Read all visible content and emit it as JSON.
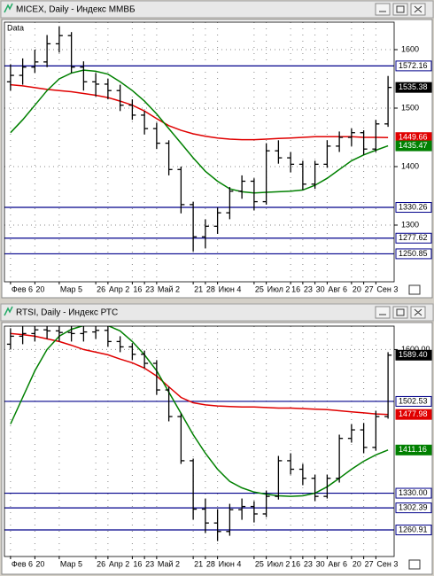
{
  "chart_data": [
    {
      "type": "ohlc",
      "title": "MICEX, Daily - Индекс ММВБ",
      "label": "Data",
      "categories": [
        "Фев 6",
        null,
        "20",
        null,
        "Мар 5",
        null,
        null,
        "26",
        "Апр 2",
        null,
        "16",
        "23",
        "Май 2",
        null,
        null,
        "21",
        "28",
        "Июн 4",
        null,
        null,
        "25",
        "Июл 2",
        null,
        "16",
        "23",
        "30",
        "Авг 6",
        null,
        "20",
        "27",
        "Сен 3",
        null
      ],
      "ohlc": [
        [
          1545,
          1575,
          1530,
          1556
        ],
        [
          1556,
          1585,
          1540,
          1570
        ],
        [
          1570,
          1600,
          1560,
          1579
        ],
        [
          1579,
          1625,
          1570,
          1610
        ],
        [
          1610,
          1640,
          1595,
          1624
        ],
        [
          1624,
          1630,
          1560,
          1570
        ],
        [
          1570,
          1580,
          1530,
          1545
        ],
        [
          1545,
          1560,
          1520,
          1541
        ],
        [
          1541,
          1550,
          1515,
          1530
        ],
        [
          1530,
          1540,
          1495,
          1505
        ],
        [
          1505,
          1515,
          1480,
          1488
        ],
        [
          1488,
          1495,
          1455,
          1465
        ],
        [
          1465,
          1475,
          1430,
          1440
        ],
        [
          1440,
          1445,
          1385,
          1395
        ],
        [
          1395,
          1400,
          1320,
          1335
        ],
        [
          1335,
          1340,
          1255,
          1280
        ],
        [
          1280,
          1310,
          1260,
          1298
        ],
        [
          1298,
          1330,
          1285,
          1321
        ],
        [
          1321,
          1365,
          1310,
          1358
        ],
        [
          1358,
          1385,
          1345,
          1375
        ],
        [
          1375,
          1380,
          1325,
          1340
        ],
        [
          1340,
          1440,
          1335,
          1427
        ],
        [
          1427,
          1445,
          1405,
          1415
        ],
        [
          1415,
          1425,
          1390,
          1404
        ],
        [
          1404,
          1410,
          1360,
          1370
        ],
        [
          1370,
          1410,
          1362,
          1404
        ],
        [
          1404,
          1445,
          1398,
          1435
        ],
        [
          1435,
          1460,
          1425,
          1450
        ],
        [
          1450,
          1465,
          1435,
          1458
        ],
        [
          1458,
          1462,
          1420,
          1430
        ],
        [
          1430,
          1480,
          1425,
          1473
        ],
        [
          1473,
          1555,
          1468,
          1535.38
        ]
      ],
      "series": [
        {
          "color": "#e00000",
          "values": [
            1540,
            1538,
            1535,
            1532,
            1530,
            1528,
            1525,
            1522,
            1518,
            1512,
            1505,
            1495,
            1482,
            1470,
            1462,
            1456,
            1452,
            1449,
            1447,
            1446,
            1446,
            1447,
            1448,
            1449,
            1450,
            1451,
            1451,
            1451,
            1451,
            1450,
            1450,
            1449.66
          ]
        },
        {
          "color": "#008000",
          "values": [
            1458,
            1480,
            1505,
            1530,
            1550,
            1560,
            1565,
            1563,
            1558,
            1545,
            1530,
            1512,
            1490,
            1465,
            1440,
            1415,
            1392,
            1375,
            1362,
            1357,
            1355,
            1356,
            1357,
            1358,
            1360,
            1368,
            1380,
            1395,
            1410,
            1420,
            1428,
            1435.47
          ]
        }
      ],
      "levels": [
        1572.16,
        1330.26,
        1277.62,
        1250.85
      ],
      "level_color": "#00008b",
      "ylim": [
        1203,
        1647
      ],
      "yticks": [
        1300,
        1400,
        1500,
        1600
      ],
      "grid": true
    },
    {
      "type": "ohlc",
      "title": "RTSI, Daily - Индекс РТС",
      "categories": [
        "Фев 6",
        null,
        "20",
        null,
        "Мар 5",
        null,
        null,
        "26",
        "Апр 2",
        null,
        "16",
        "23",
        "Май 2",
        null,
        null,
        "21",
        "28",
        "Июн 4",
        null,
        null,
        "25",
        "Июл 2",
        null,
        "16",
        "23",
        "30",
        "Авг 6",
        null,
        "20",
        "27",
        "Сен 3",
        null
      ],
      "ohlc": [
        [
          1610,
          1640,
          1600,
          1625
        ],
        [
          1625,
          1645,
          1610,
          1630
        ],
        [
          1630,
          1650,
          1615,
          1637
        ],
        [
          1637,
          1650,
          1620,
          1635
        ],
        [
          1635,
          1648,
          1615,
          1632
        ],
        [
          1632,
          1645,
          1615,
          1630
        ],
        [
          1630,
          1645,
          1615,
          1633
        ],
        [
          1633,
          1650,
          1620,
          1636
        ],
        [
          1636,
          1648,
          1605,
          1615
        ],
        [
          1615,
          1625,
          1595,
          1605
        ],
        [
          1605,
          1612,
          1580,
          1591
        ],
        [
          1591,
          1598,
          1565,
          1574
        ],
        [
          1574,
          1580,
          1515,
          1524
        ],
        [
          1524,
          1530,
          1465,
          1474
        ],
        [
          1474,
          1480,
          1385,
          1391
        ],
        [
          1391,
          1395,
          1280,
          1300
        ],
        [
          1300,
          1320,
          1255,
          1274
        ],
        [
          1274,
          1300,
          1240,
          1258
        ],
        [
          1258,
          1310,
          1250,
          1299
        ],
        [
          1299,
          1320,
          1280,
          1305
        ],
        [
          1305,
          1315,
          1275,
          1291
        ],
        [
          1291,
          1335,
          1285,
          1324
        ],
        [
          1324,
          1400,
          1318,
          1391
        ],
        [
          1391,
          1405,
          1365,
          1375
        ],
        [
          1375,
          1385,
          1345,
          1358
        ],
        [
          1358,
          1365,
          1315,
          1324
        ],
        [
          1324,
          1365,
          1320,
          1358
        ],
        [
          1358,
          1440,
          1350,
          1433
        ],
        [
          1433,
          1460,
          1425,
          1449
        ],
        [
          1449,
          1462,
          1405,
          1416
        ],
        [
          1416,
          1485,
          1410,
          1474
        ],
        [
          1474,
          1595,
          1470,
          1589.4
        ]
      ],
      "value_labels": {
        "last": "1589.40"
      },
      "series": [
        {
          "color": "#e00000",
          "values": [
            1630,
            1628,
            1625,
            1620,
            1615,
            1608,
            1600,
            1595,
            1590,
            1582,
            1575,
            1565,
            1550,
            1530,
            1510,
            1500,
            1496,
            1494,
            1493,
            1492,
            1492,
            1491,
            1490,
            1490,
            1489,
            1488,
            1487,
            1485,
            1483,
            1481,
            1479,
            1477.98
          ]
        },
        {
          "color": "#008000",
          "values": [
            1460,
            1510,
            1560,
            1600,
            1625,
            1638,
            1645,
            1648,
            1645,
            1635,
            1615,
            1590,
            1560,
            1520,
            1480,
            1440,
            1405,
            1375,
            1352,
            1340,
            1332,
            1328,
            1325,
            1324,
            1325,
            1330,
            1342,
            1358,
            1375,
            1390,
            1402,
            1411.16
          ]
        }
      ],
      "levels": [
        1502.53,
        {
          "value": 1330,
          "label": "1330.00"
        },
        1302.39,
        1260.91
      ],
      "level_color": "#00008b",
      "ylim": [
        1211,
        1644
      ],
      "yticks": [
        {
          "value": 1600,
          "label": "1600.00"
        }
      ],
      "grid": true
    }
  ]
}
